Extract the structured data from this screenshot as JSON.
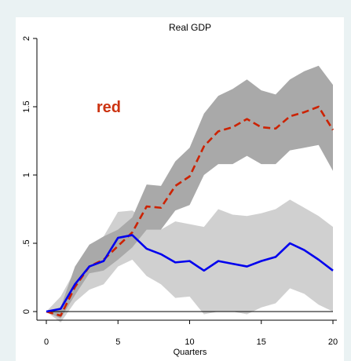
{
  "chart_data": {
    "type": "line",
    "title": "Real GDP",
    "xlabel": "Quarters",
    "ylabel": "",
    "xlim": [
      0,
      20
    ],
    "ylim": [
      0,
      2
    ],
    "xticks": [
      0,
      5,
      10,
      15,
      20
    ],
    "xtick_labels": [
      "0",
      "5",
      "10",
      "15",
      "20"
    ],
    "yticks": [
      0,
      0.5,
      1,
      1.5,
      2
    ],
    "ytick_labels": [
      "0",
      ".5",
      "1",
      "1.5",
      "2"
    ],
    "grid": false,
    "legend": "none",
    "annotation": {
      "text": "red",
      "x": 3.5,
      "y": 1.5,
      "color": "#cc3311"
    },
    "x": [
      0,
      1,
      2,
      3,
      4,
      5,
      6,
      7,
      8,
      9,
      10,
      11,
      12,
      13,
      14,
      15,
      16,
      17,
      18,
      19,
      20
    ],
    "series": [
      {
        "color": "#cc2200",
        "dash": "dashed",
        "values": [
          0,
          -0.03,
          0.18,
          0.33,
          0.38,
          0.48,
          0.58,
          0.77,
          0.76,
          0.92,
          0.99,
          1.21,
          1.32,
          1.35,
          1.41,
          1.35,
          1.34,
          1.43,
          1.46,
          1.5,
          1.33
        ]
      },
      {
        "color": "#0000ee",
        "dash": "solid",
        "values": [
          0,
          0.02,
          0.2,
          0.33,
          0.37,
          0.54,
          0.56,
          0.46,
          0.42,
          0.36,
          0.37,
          0.3,
          0.37,
          0.35,
          0.33,
          0.37,
          0.4,
          0.5,
          0.45,
          0.38,
          0.3
        ]
      }
    ],
    "bands": [
      {
        "color": "#d0d0d0",
        "lower": [
          0,
          -0.08,
          0.07,
          0.16,
          0.2,
          0.33,
          0.38,
          0.26,
          0.2,
          0.1,
          0.11,
          -0.02,
          0.0,
          0.0,
          -0.02,
          0.03,
          0.06,
          0.17,
          0.13,
          0.05,
          0.0
        ],
        "upper": [
          0,
          0.11,
          0.3,
          0.48,
          0.55,
          0.73,
          0.74,
          0.66,
          0.6,
          0.66,
          0.64,
          0.62,
          0.75,
          0.71,
          0.7,
          0.72,
          0.75,
          0.82,
          0.76,
          0.7,
          0.62
        ]
      },
      {
        "color": "#a9a9a9",
        "lower": [
          0,
          -0.05,
          0.12,
          0.28,
          0.3,
          0.38,
          0.47,
          0.6,
          0.6,
          0.74,
          0.78,
          1.0,
          1.08,
          1.08,
          1.14,
          1.08,
          1.08,
          1.18,
          1.2,
          1.22,
          1.03
        ],
        "upper": [
          0,
          0.03,
          0.33,
          0.49,
          0.55,
          0.6,
          0.69,
          0.93,
          0.92,
          1.1,
          1.2,
          1.45,
          1.58,
          1.63,
          1.7,
          1.62,
          1.59,
          1.7,
          1.76,
          1.8,
          1.66
        ]
      }
    ]
  }
}
